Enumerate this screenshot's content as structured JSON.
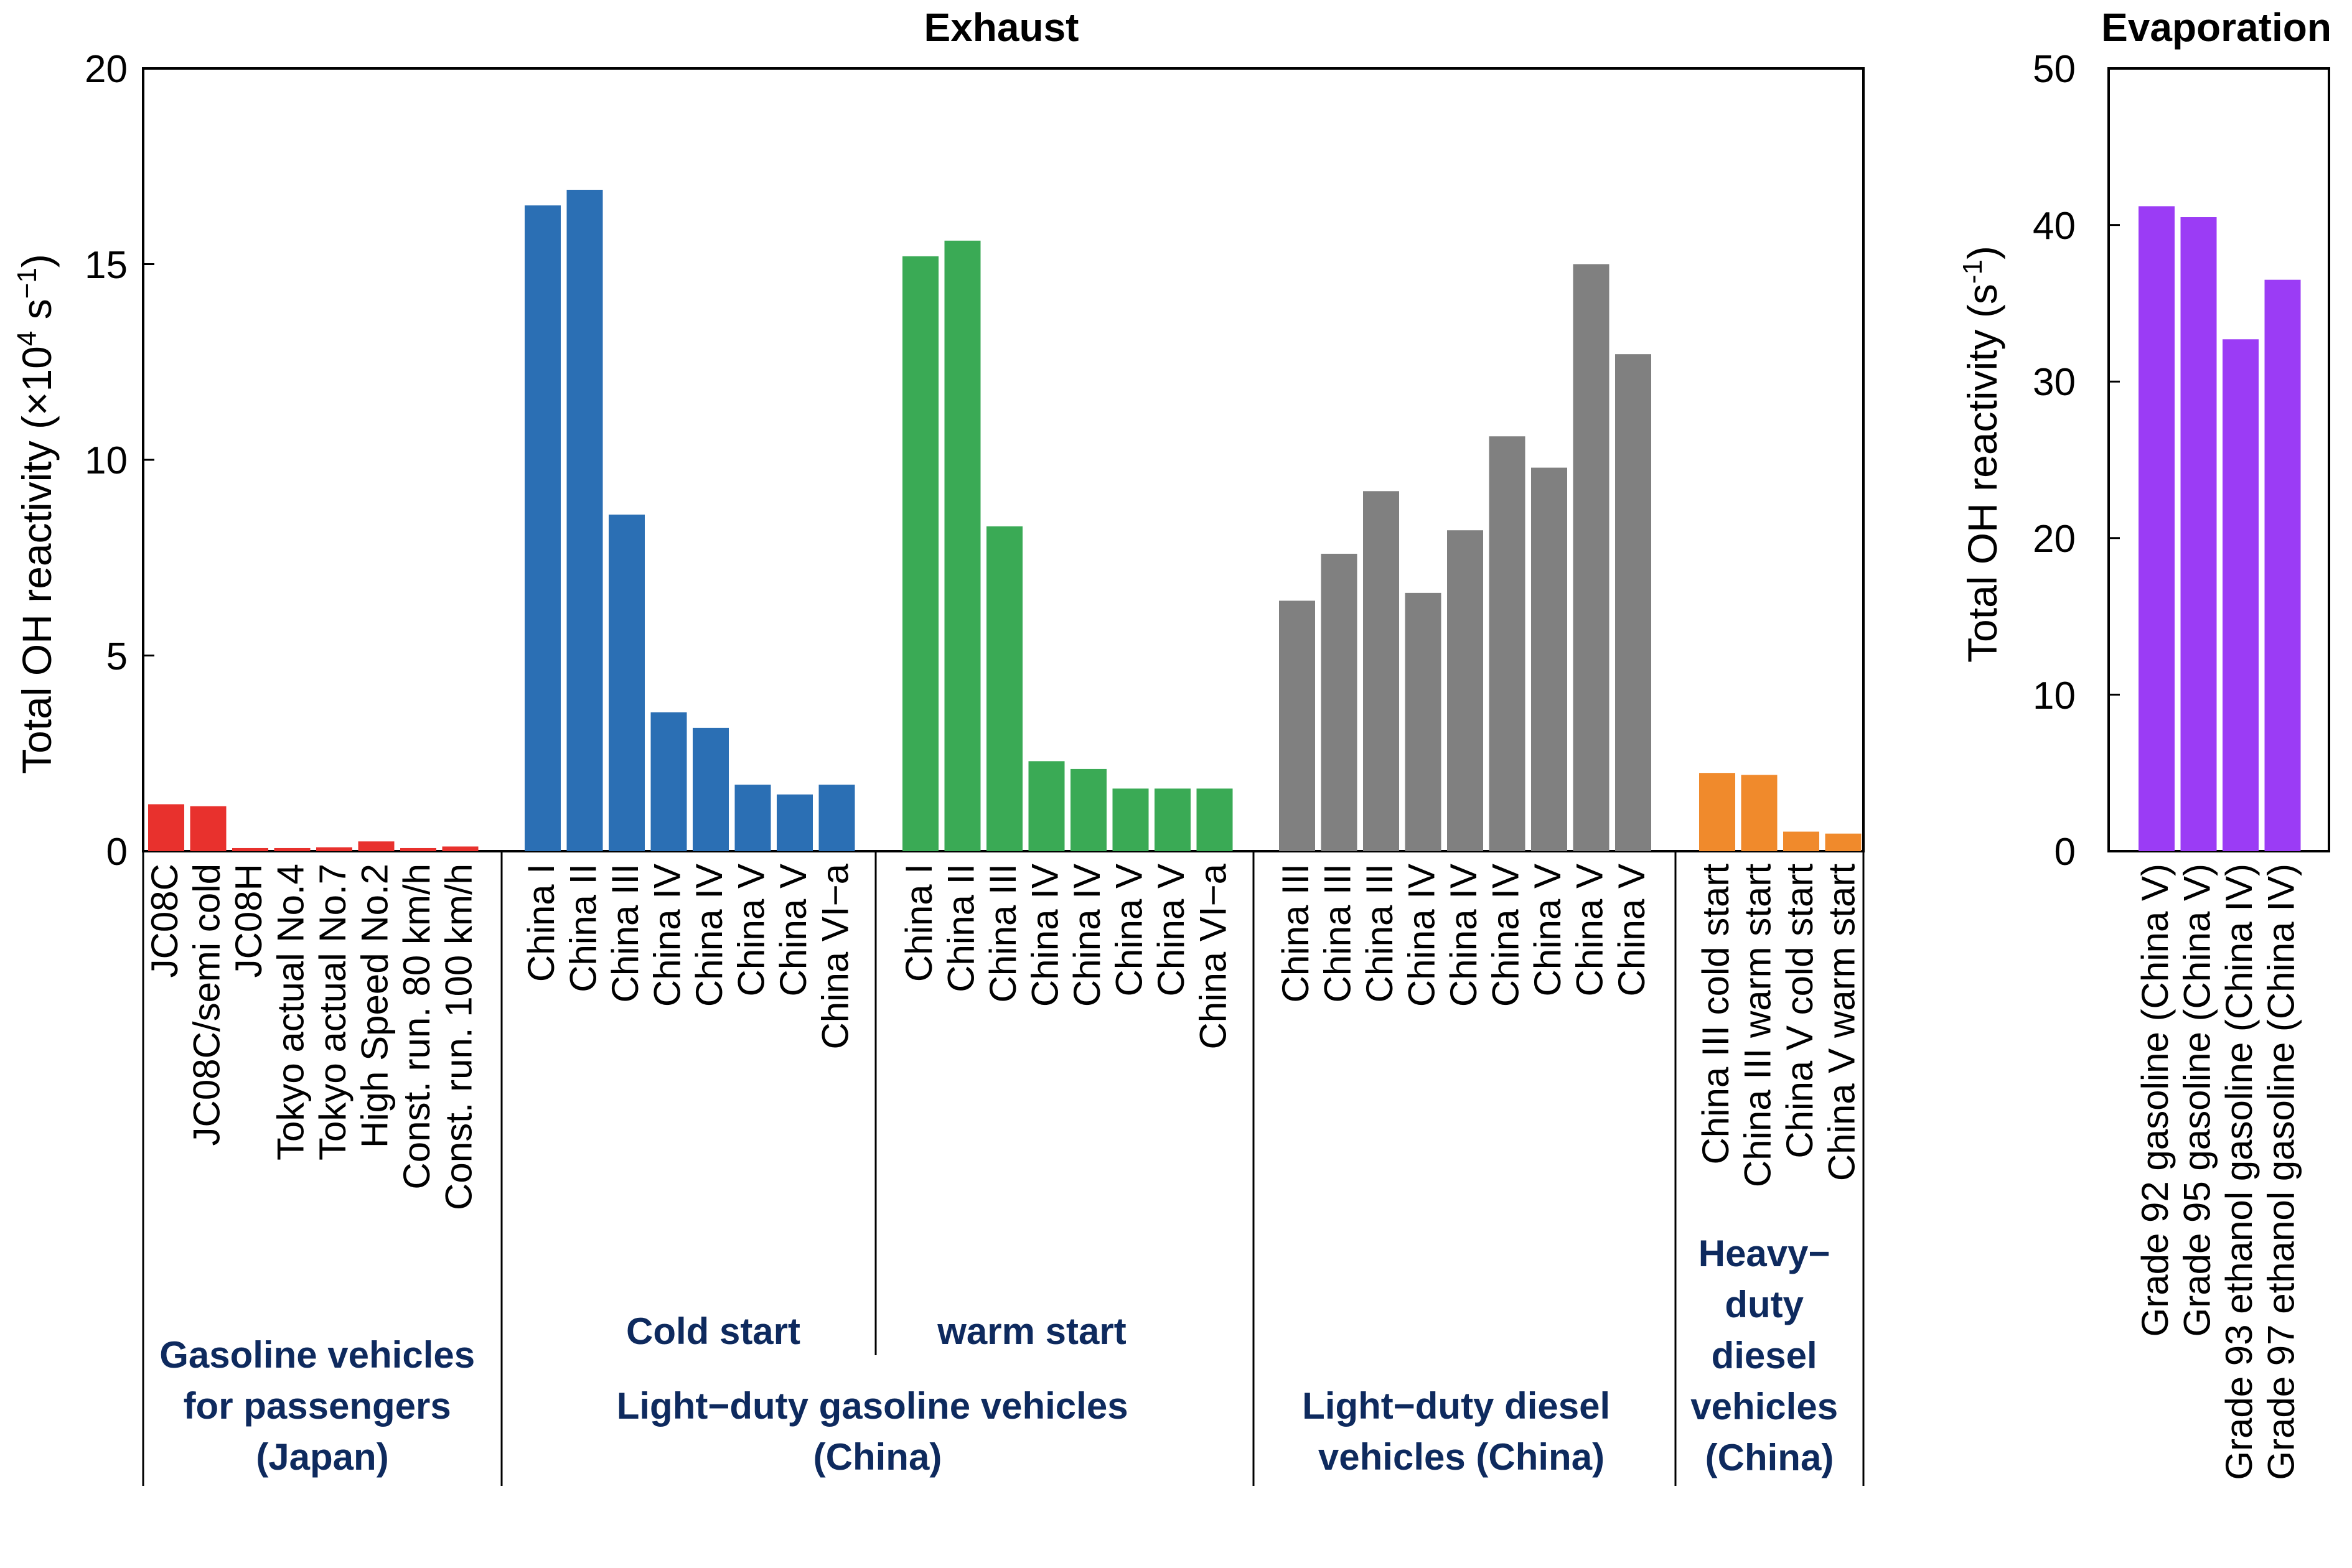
{
  "chart_data": [
    {
      "type": "bar",
      "title": "Exhaust",
      "ylabel_main": "Total OH reactivity (×10",
      "ylabel_sup1": "4",
      "ylabel_mid": " s",
      "ylabel_sup2": "−1",
      "ylabel_end": ")",
      "ylim": [
        0,
        20
      ],
      "yticks": [
        "0",
        "5",
        "10",
        "15",
        "20"
      ],
      "groups": [
        {
          "color": "#e8312d",
          "categories": [
            "JC08C",
            "JC08C/semi cold",
            "JC08H",
            "Tokyo actual No.4",
            "Tokyo actual No.7",
            "High Speed No.2",
            "Const. run. 80 km/h",
            "Const. run. 100 km/h"
          ],
          "values": [
            1.2,
            1.15,
            0.08,
            0.08,
            0.1,
            0.25,
            0.08,
            0.12
          ]
        },
        {
          "color": "#2b6fb4",
          "categories": [
            "China I",
            "China II",
            "China III",
            "China IV",
            "China IV",
            "China V",
            "China V",
            "China VI−a"
          ],
          "values": [
            16.5,
            16.9,
            8.6,
            3.55,
            3.15,
            1.7,
            1.45,
            1.7
          ]
        },
        {
          "color": "#3aaa55",
          "categories": [
            "China I",
            "China II",
            "China III",
            "China IV",
            "China IV",
            "China V",
            "China V",
            "China VI−a"
          ],
          "values": [
            15.2,
            15.6,
            8.3,
            2.3,
            2.1,
            1.6,
            1.6,
            1.6
          ]
        },
        {
          "color": "#808080",
          "categories": [
            "China III",
            "China III",
            "China III",
            "China IV",
            "China IV",
            "China IV",
            "China V",
            "China V",
            "China V"
          ],
          "values": [
            6.4,
            7.6,
            9.2,
            6.6,
            8.2,
            10.6,
            9.8,
            15.0,
            12.7
          ]
        },
        {
          "color": "#f08a2c",
          "categories": [
            "China III cold start",
            "China III warm start",
            "China V cold start",
            "China V warm start"
          ],
          "values": [
            2.0,
            1.95,
            0.5,
            0.45
          ]
        }
      ],
      "group_labels": {
        "japan": [
          "Gasoline vehicles",
          "for passengers",
          "(Japan)"
        ],
        "cold_start": "Cold start",
        "warm_start": "warm start",
        "ldgv": [
          "Light−duty gasoline vehicles",
          "(China)"
        ],
        "ldd": [
          "Light−duty diesel",
          "vehicles (China)"
        ],
        "hdd": [
          "Heavy−",
          "duty",
          "diesel",
          "vehicles",
          "(China)"
        ]
      }
    },
    {
      "type": "bar",
      "title": "Evaporation",
      "ylabel_main": "Total OH reactivity (s",
      "ylabel_sup": "-1",
      "ylabel_end": ")",
      "ylim": [
        0,
        50
      ],
      "yticks": [
        "0",
        "10",
        "20",
        "30",
        "40",
        "50"
      ],
      "color": "#9b3cf5",
      "categories": [
        "Grade 92 gasoline (China V)",
        "Grade 95 gasoline (China V)",
        "Grade 93 ethanol gasoline (China IV)",
        "Grade 97 ethanol gasoline (China IV)"
      ],
      "values": [
        41.2,
        40.5,
        32.7,
        36.5
      ]
    }
  ]
}
